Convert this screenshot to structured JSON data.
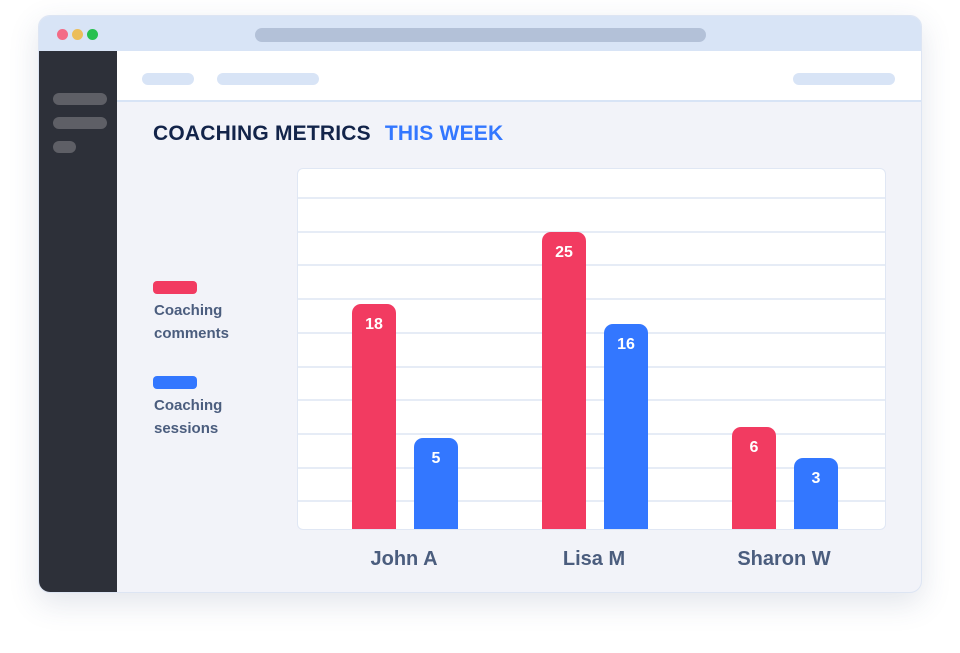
{
  "window": {
    "controls": [
      {
        "name": "close",
        "color": "#f36b86"
      },
      {
        "name": "minimize",
        "color": "#ecbe5a"
      },
      {
        "name": "maximize",
        "color": "#27c04f"
      }
    ]
  },
  "header": {
    "title": "COACHING METRICS",
    "subtitle": "THIS WEEK"
  },
  "chart_data": {
    "type": "bar",
    "title": "COACHING METRICS THIS WEEK",
    "categories": [
      "John A",
      "Lisa M",
      "Sharon W"
    ],
    "series": [
      {
        "name": "Coaching comments",
        "label_lines": [
          "Coaching",
          "comments"
        ],
        "color": "#f23b61",
        "values": [
          18,
          25,
          6
        ]
      },
      {
        "name": "Coaching sessions",
        "label_lines": [
          "Coaching",
          "sessions"
        ],
        "color": "#3377ff",
        "values": [
          5,
          16,
          3
        ]
      }
    ],
    "xlabel": "",
    "ylabel": "",
    "grid": true,
    "legend": "left"
  }
}
